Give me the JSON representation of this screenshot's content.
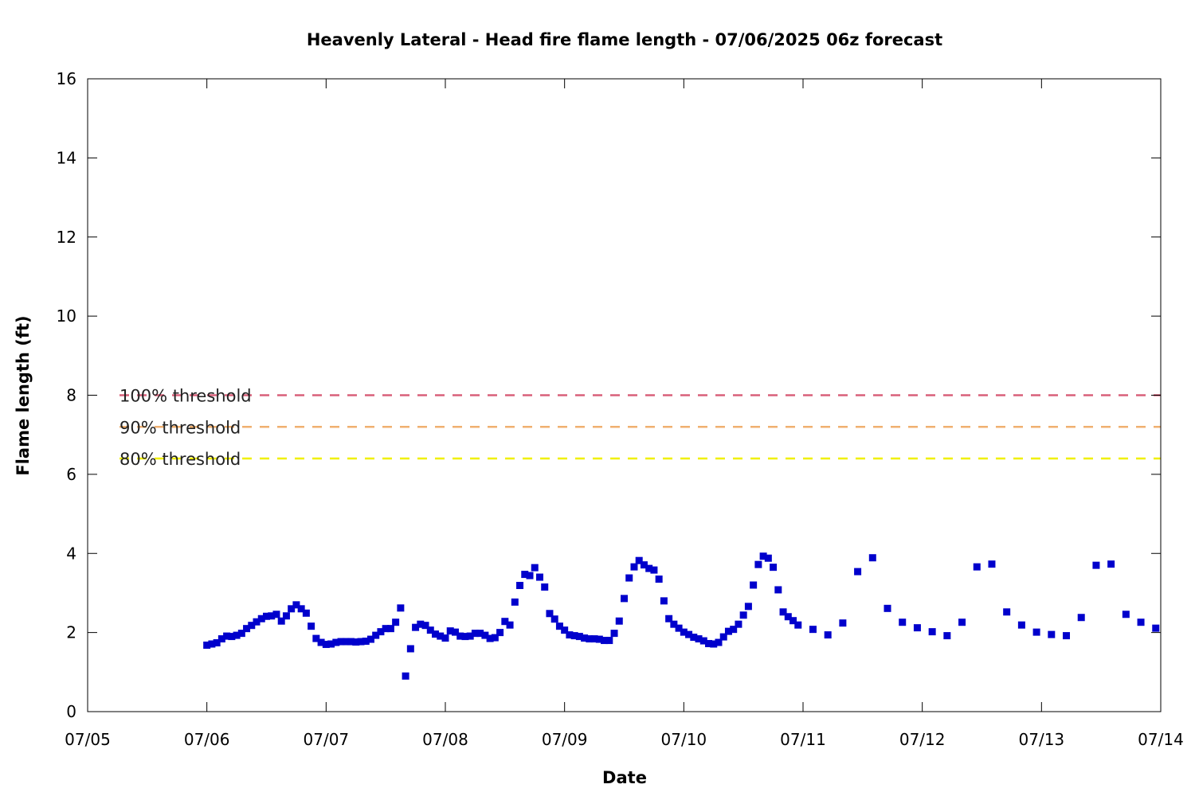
{
  "chart_data": {
    "type": "scatter",
    "title": "Heavenly Lateral - Head fire flame length - 07/06/2025 06z forecast",
    "xlabel": "Date",
    "ylabel": "Flame length (ft)",
    "xlim": [
      "07/05",
      "07/14"
    ],
    "ylim": [
      0,
      16
    ],
    "x_tick_labels": [
      "07/05",
      "07/06",
      "07/07",
      "07/08",
      "07/09",
      "07/10",
      "07/11",
      "07/12",
      "07/13",
      "07/14"
    ],
    "y_tick_labels": [
      "0",
      "2",
      "4",
      "6",
      "8",
      "10",
      "12",
      "14",
      "16"
    ],
    "y_ticks": [
      0,
      2,
      4,
      6,
      8,
      10,
      12,
      14,
      16
    ],
    "grid": false,
    "point_color": "#0000cc",
    "thresholds": [
      {
        "label": "100% threshold",
        "value": 8.0,
        "color": "#d9607a"
      },
      {
        "label": "90% threshold",
        "value": 7.2,
        "color": "#f0b070"
      },
      {
        "label": "80% threshold",
        "value": 6.4,
        "color": "#f0f000"
      }
    ],
    "series": [
      {
        "x": [
          "07/06 00:00",
          "07/06 01:00",
          "07/06 02:00",
          "07/06 03:00",
          "07/06 04:00",
          "07/06 05:00",
          "07/06 06:00",
          "07/06 07:00",
          "07/06 08:00",
          "07/06 09:00",
          "07/06 10:00",
          "07/06 11:00",
          "07/06 12:00",
          "07/06 13:00",
          "07/06 14:00",
          "07/06 15:00",
          "07/06 16:00",
          "07/06 17:00",
          "07/06 18:00",
          "07/06 19:00",
          "07/06 20:00",
          "07/06 21:00",
          "07/06 22:00",
          "07/06 23:00",
          "07/07 00:00",
          "07/07 01:00",
          "07/07 02:00",
          "07/07 03:00",
          "07/07 04:00",
          "07/07 05:00",
          "07/07 06:00",
          "07/07 07:00",
          "07/07 08:00",
          "07/07 09:00",
          "07/07 10:00",
          "07/07 11:00",
          "07/07 12:00",
          "07/07 13:00",
          "07/07 14:00",
          "07/07 15:00",
          "07/07 16:00",
          "07/07 17:00",
          "07/07 18:00",
          "07/07 19:00",
          "07/07 20:00",
          "07/07 21:00",
          "07/07 22:00",
          "07/07 23:00",
          "07/08 00:00",
          "07/08 01:00",
          "07/08 02:00",
          "07/08 03:00",
          "07/08 04:00",
          "07/08 05:00",
          "07/08 06:00",
          "07/08 07:00",
          "07/08 08:00",
          "07/08 09:00",
          "07/08 10:00",
          "07/08 11:00",
          "07/08 12:00",
          "07/08 13:00",
          "07/08 14:00",
          "07/08 15:00",
          "07/08 16:00",
          "07/08 17:00",
          "07/08 18:00",
          "07/08 19:00",
          "07/08 20:00",
          "07/08 21:00",
          "07/08 22:00",
          "07/08 23:00",
          "07/09 00:00",
          "07/09 01:00",
          "07/09 02:00",
          "07/09 03:00",
          "07/09 04:00",
          "07/09 05:00",
          "07/09 06:00",
          "07/09 07:00",
          "07/09 08:00",
          "07/09 09:00",
          "07/09 10:00",
          "07/09 11:00",
          "07/09 12:00",
          "07/09 13:00",
          "07/09 14:00",
          "07/09 15:00",
          "07/09 16:00",
          "07/09 17:00",
          "07/09 18:00",
          "07/09 19:00",
          "07/09 20:00",
          "07/09 21:00",
          "07/09 22:00",
          "07/09 23:00",
          "07/10 00:00",
          "07/10 01:00",
          "07/10 02:00",
          "07/10 03:00",
          "07/10 04:00",
          "07/10 05:00",
          "07/10 06:00",
          "07/10 07:00",
          "07/10 08:00",
          "07/10 09:00",
          "07/10 10:00",
          "07/10 11:00",
          "07/10 12:00",
          "07/10 13:00",
          "07/10 14:00",
          "07/10 15:00",
          "07/10 16:00",
          "07/10 17:00",
          "07/10 18:00",
          "07/10 19:00",
          "07/10 20:00",
          "07/10 21:00",
          "07/10 22:00",
          "07/10 23:00",
          "07/11 02:00",
          "07/11 05:00",
          "07/11 08:00",
          "07/11 11:00",
          "07/11 14:00",
          "07/11 17:00",
          "07/11 20:00",
          "07/11 23:00",
          "07/12 02:00",
          "07/12 05:00",
          "07/12 08:00",
          "07/12 11:00",
          "07/12 14:00",
          "07/12 17:00",
          "07/12 20:00",
          "07/12 23:00",
          "07/13 02:00",
          "07/13 05:00",
          "07/13 08:00",
          "07/13 11:00",
          "07/13 14:00",
          "07/13 17:00",
          "07/13 20:00",
          "07/13 23:00"
        ],
        "y": [
          1.68,
          1.71,
          1.74,
          1.84,
          1.91,
          1.9,
          1.93,
          1.98,
          2.1,
          2.18,
          2.27,
          2.35,
          2.41,
          2.42,
          2.46,
          2.29,
          2.42,
          2.6,
          2.7,
          2.6,
          2.49,
          2.16,
          1.85,
          1.75,
          1.7,
          1.71,
          1.75,
          1.77,
          1.77,
          1.77,
          1.76,
          1.77,
          1.78,
          1.83,
          1.93,
          2.02,
          2.1,
          2.1,
          2.26,
          2.62,
          0.9,
          1.59,
          2.13,
          2.21,
          2.18,
          2.06,
          1.96,
          1.91,
          1.86,
          2.04,
          2.01,
          1.91,
          1.9,
          1.91,
          1.98,
          1.98,
          1.93,
          1.85,
          1.87,
          2.0,
          2.28,
          2.19,
          2.77,
          3.19,
          3.47,
          3.44,
          3.64,
          3.4,
          3.15,
          2.48,
          2.34,
          2.16,
          2.06,
          1.94,
          1.92,
          1.9,
          1.86,
          1.84,
          1.84,
          1.83,
          1.8,
          1.8,
          1.98,
          2.29,
          2.86,
          3.38,
          3.66,
          3.82,
          3.71,
          3.62,
          3.58,
          3.35,
          2.8,
          2.35,
          2.21,
          2.11,
          2.01,
          1.95,
          1.88,
          1.84,
          1.79,
          1.72,
          1.71,
          1.75,
          1.89,
          2.03,
          2.08,
          2.21,
          2.44,
          2.66,
          3.2,
          3.72,
          3.93,
          3.88,
          3.65,
          3.08,
          2.52,
          2.4,
          2.3,
          2.19,
          2.08,
          1.94,
          2.24,
          3.54,
          3.89,
          2.61,
          2.26,
          2.12,
          2.02,
          1.92,
          2.26,
          3.66,
          3.73,
          2.52,
          2.19,
          2.01,
          1.95,
          1.92,
          2.38,
          3.7,
          3.73,
          2.46,
          2.26,
          2.11
        ]
      }
    ]
  }
}
